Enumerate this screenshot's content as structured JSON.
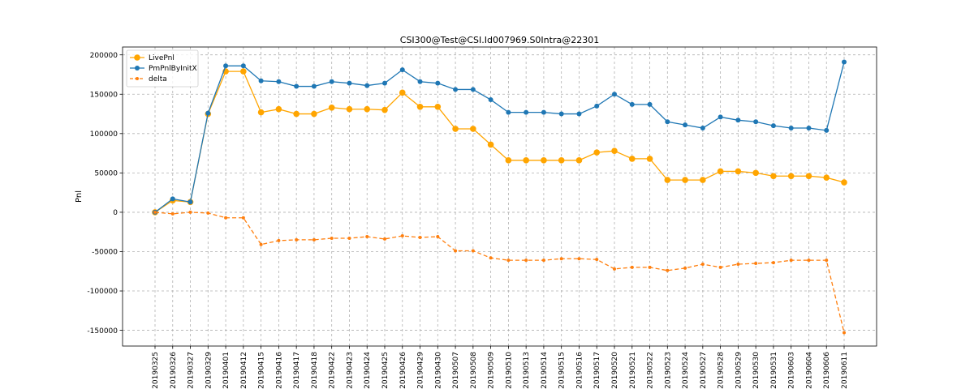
{
  "chart_data": {
    "type": "line",
    "title": "CSI300@Test@CSI.Id007969.S0Intra@22301",
    "xlabel": "",
    "ylabel": "Pnl",
    "ylim": [
      -170000,
      210000
    ],
    "yticks": [
      -150000,
      -100000,
      -50000,
      0,
      50000,
      100000,
      150000,
      200000
    ],
    "grid": true,
    "legend_position": "top-left",
    "categories": [
      "20190325",
      "20190326",
      "20190327",
      "20190329",
      "20190401",
      "20190412",
      "20190415",
      "20190416",
      "20190417",
      "20190418",
      "20190422",
      "20190423",
      "20190424",
      "20190425",
      "20190426",
      "20190429",
      "20190430",
      "20190507",
      "20190508",
      "20190509",
      "20190510",
      "20190513",
      "20190514",
      "20190515",
      "20190516",
      "20190517",
      "20190520",
      "20190521",
      "20190522",
      "20190523",
      "20190524",
      "20190527",
      "20190528",
      "20190529",
      "20190530",
      "20190531",
      "20190603",
      "20190604",
      "20190606",
      "20190611"
    ],
    "series": [
      {
        "name": "LivePnl",
        "color": "#ffa500",
        "style": "solid",
        "marker": "large-circle",
        "values": [
          0,
          15000,
          13000,
          125000,
          179000,
          179000,
          127000,
          131000,
          125000,
          125000,
          133000,
          131000,
          131000,
          130000,
          152000,
          134000,
          134000,
          106000,
          106000,
          86000,
          66000,
          66000,
          66000,
          66000,
          66000,
          76000,
          78000,
          68000,
          68000,
          41000,
          41000,
          41000,
          52000,
          52000,
          50000,
          46000,
          46000,
          46000,
          44000,
          38000
        ]
      },
      {
        "name": "PmPnlByInitX",
        "color": "#1f77b4",
        "style": "solid",
        "marker": "circle",
        "values": [
          0,
          17000,
          13000,
          126000,
          186000,
          186000,
          167000,
          166000,
          160000,
          160000,
          166000,
          164000,
          161000,
          164000,
          181000,
          166000,
          164000,
          156000,
          156000,
          143000,
          127000,
          127000,
          127000,
          125000,
          125000,
          135000,
          150000,
          137000,
          137000,
          115000,
          111000,
          107000,
          121000,
          117000,
          115000,
          110000,
          107000,
          107000,
          104000,
          191000
        ]
      },
      {
        "name": "delta",
        "color": "#ff7f0e",
        "style": "dashed",
        "marker": "small-circle",
        "values": [
          0,
          -2000,
          0,
          -1000,
          -7000,
          -7000,
          -41000,
          -36000,
          -35000,
          -35000,
          -33000,
          -33000,
          -31000,
          -34000,
          -30000,
          -32000,
          -31000,
          -49000,
          -49000,
          -58000,
          -61000,
          -61000,
          -61000,
          -59000,
          -59000,
          -60000,
          -72000,
          -70000,
          -70000,
          -74000,
          -71000,
          -66000,
          -70000,
          -66000,
          -65000,
          -64000,
          -61000,
          -61000,
          -61000,
          -153000
        ]
      }
    ]
  }
}
